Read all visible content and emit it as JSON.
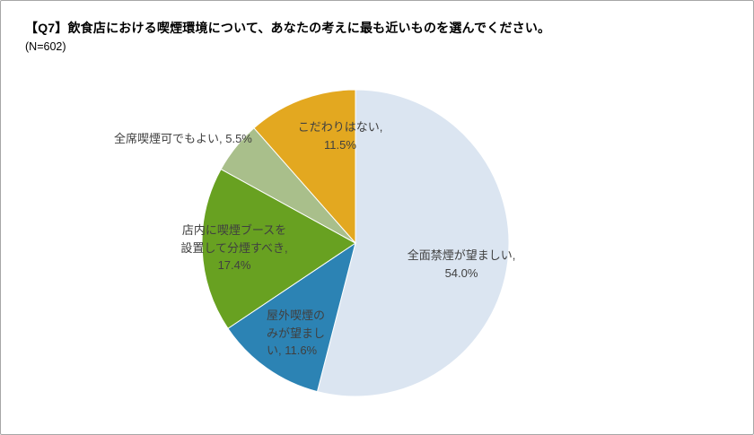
{
  "header": {
    "title": "【Q7】飲食店における喫煙環境について、あなたの考えに最も近いものを選んでください。",
    "sample_size": "(N=602)"
  },
  "chart_data": {
    "type": "pie",
    "title": "飲食店における喫煙環境について、あなたの考えに最も近いもの",
    "sample_size_label": "(N=602)",
    "categories": [
      "全面禁煙が望ましい",
      "屋外喫煙のみが望ましい",
      "店内に喫煙ブースを設置して分煙すべき",
      "全席喫煙可でもよい",
      "こだわりはない"
    ],
    "values": [
      54.0,
      11.6,
      17.4,
      5.5,
      11.5
    ],
    "unit": "%",
    "colors": [
      "#dbe5f1",
      "#2c83b4",
      "#68a121",
      "#a9bf8b",
      "#e3a820"
    ],
    "start_angle": "top",
    "direction": "clockwise",
    "legend": "none",
    "labels": [
      "全面禁煙が望ましい, 54.0%",
      "屋外喫煙のみが望ましい, 11.6%",
      "店内に喫煙ブースを設置して分煙すべき, 17.4%",
      "全席喫煙可でもよい, 5.5%",
      "こだわりはない, 11.5%"
    ],
    "label_lines": [
      [
        "全面禁煙が望ましい,",
        "54.0%"
      ],
      [
        "屋外喫煙の",
        "みが望まし",
        "い, 11.6%"
      ],
      [
        "店内に喫煙ブースを",
        "設置して分煙すべき,",
        "17.4%"
      ],
      [
        "全席喫煙可でもよい, 5.5%"
      ],
      [
        "こだわりはない,",
        "11.5%"
      ]
    ]
  }
}
